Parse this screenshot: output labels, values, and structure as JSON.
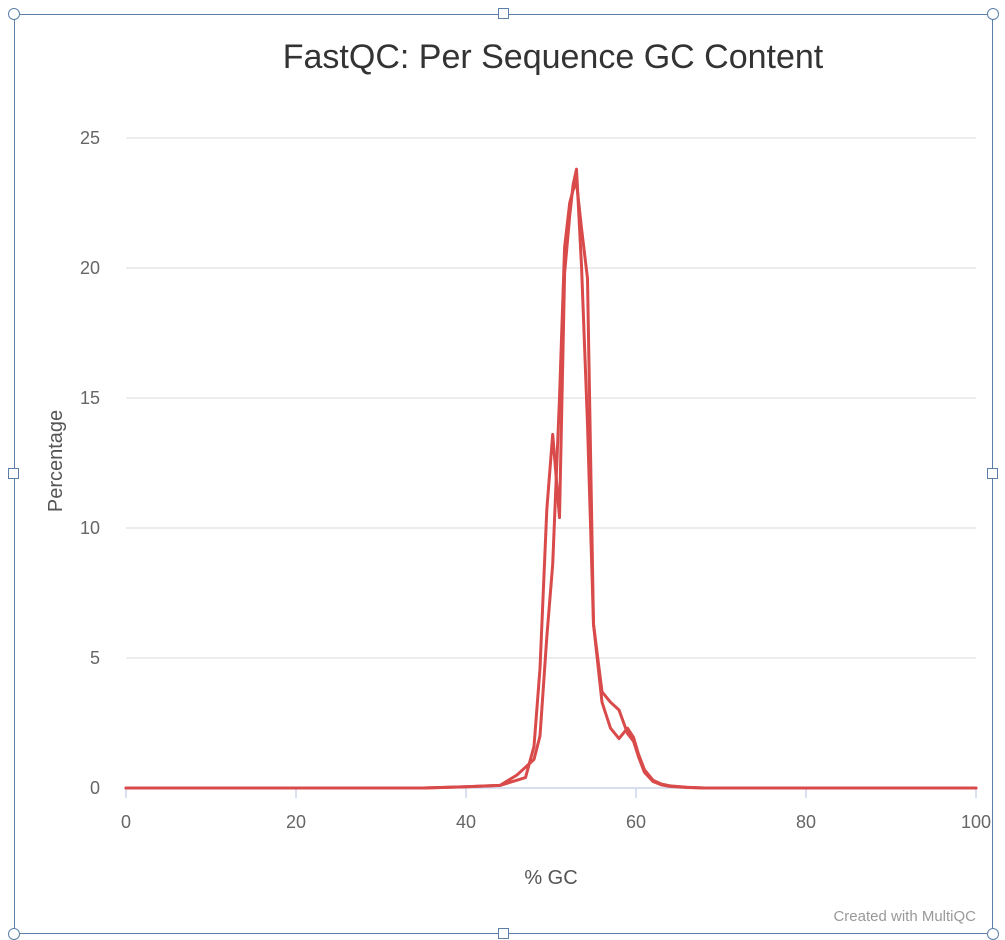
{
  "chart_data": {
    "type": "line",
    "title": "FastQC: Per Sequence GC Content",
    "xlabel": "% GC",
    "ylabel": "Percentage",
    "xlim": [
      0,
      100
    ],
    "ylim": [
      0,
      25
    ],
    "xticks": [
      0,
      20,
      40,
      60,
      80,
      100
    ],
    "yticks": [
      0,
      5,
      10,
      15,
      20,
      25
    ],
    "grid": true,
    "credit": "Created with MultiQC",
    "series": [
      {
        "color": "#d94a4a",
        "x": [
          0,
          10,
          20,
          30,
          35,
          40,
          44,
          46,
          47,
          48,
          48.7,
          49.5,
          50.2,
          51,
          51.6,
          52.2,
          52.6,
          53,
          53.6,
          54.3,
          55,
          56,
          57,
          58,
          59,
          59.7,
          60.3,
          61,
          62,
          63,
          64,
          66,
          68,
          70,
          80,
          90,
          100
        ],
        "y": [
          0,
          0,
          0,
          0,
          0,
          0.05,
          0.1,
          0.3,
          0.4,
          1.6,
          4.6,
          10.7,
          13.6,
          10.4,
          19.8,
          22.0,
          23.2,
          23.8,
          20.0,
          14.0,
          6.3,
          3.3,
          2.3,
          1.9,
          2.3,
          1.95,
          1.3,
          0.7,
          0.3,
          0.15,
          0.08,
          0.03,
          0,
          0,
          0,
          0,
          0
        ]
      },
      {
        "color": "#d94a4a",
        "x": [
          0,
          10,
          20,
          30,
          35,
          40,
          44,
          46,
          47,
          48,
          48.7,
          49.5,
          50.2,
          51,
          51.6,
          52.2,
          52.6,
          53,
          53.6,
          54.3,
          55,
          56,
          57,
          58,
          59,
          59.7,
          60.3,
          61,
          62,
          63,
          64,
          66,
          68,
          70,
          80,
          90,
          100
        ],
        "y": [
          0,
          0,
          0,
          0,
          0,
          0.05,
          0.1,
          0.5,
          0.8,
          1.1,
          2.0,
          5.8,
          8.6,
          15.0,
          20.8,
          22.5,
          23.0,
          23.3,
          21.5,
          19.6,
          6.3,
          3.7,
          3.3,
          3.0,
          2.1,
          1.8,
          1.2,
          0.6,
          0.25,
          0.12,
          0.06,
          0.02,
          0,
          0,
          0,
          0,
          0
        ]
      }
    ]
  }
}
